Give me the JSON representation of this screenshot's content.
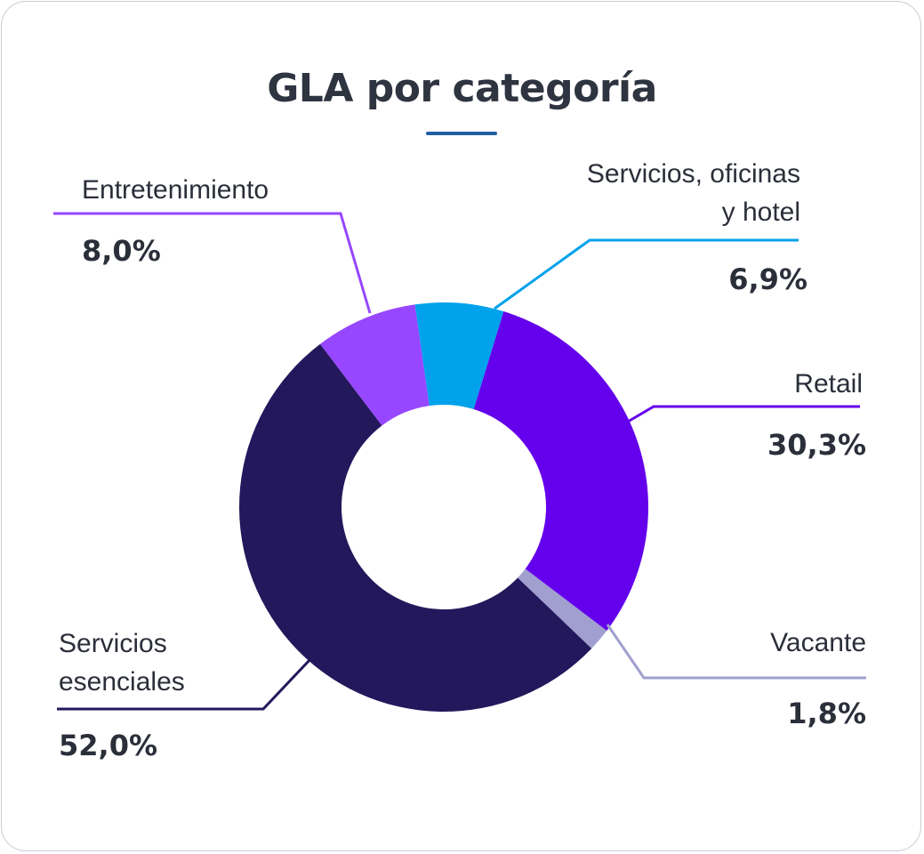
{
  "chart_data": {
    "type": "pie",
    "variant": "donut",
    "title": "GLA por categoría",
    "slices": [
      {
        "label": "Retail",
        "value_text": "30,3%",
        "value": 30.3,
        "color": "#6400eb"
      },
      {
        "label": "Vacante",
        "value_text": "1,8%",
        "value": 1.8,
        "color": "#a09fcf"
      },
      {
        "label": "Servicios\nesenciales",
        "value_text": "52,0%",
        "value": 52.0,
        "color": "#23185c"
      },
      {
        "label": "Entretenimiento",
        "value_text": "8,0%",
        "value": 8.0,
        "color": "#9747ff"
      },
      {
        "label": "Servicios, oficinas\ny hotel",
        "value_text": "6,9%",
        "value": 6.9,
        "color": "#00a2ec"
      }
    ],
    "start_angle_deg": 17,
    "legend": "none"
  }
}
